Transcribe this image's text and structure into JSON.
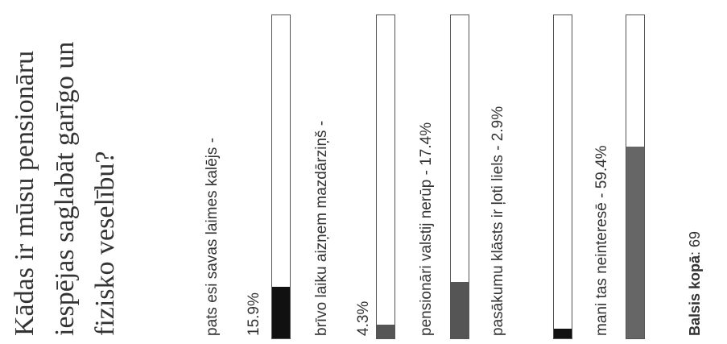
{
  "poll": {
    "question": "Kādas ir mūsu pensionāru iespējas saglabāt garīgo un fizisko veselību?",
    "options": [
      {
        "label": "pats esi savas laimes kalējs - 15.9%",
        "percent": 15.9,
        "color": "#111111"
      },
      {
        "label": "brīvo laiku aizņem mazdārziņš - 4.3%",
        "percent": 4.3,
        "color": "#555555"
      },
      {
        "label": "pensionāri valstij nerūp - 17.4%",
        "percent": 17.4,
        "color": "#555555"
      },
      {
        "label": "pasākumu klāsts ir ļoti liels - 2.9%",
        "percent": 2.9,
        "color": "#111111"
      },
      {
        "label": "mani tas neinteresē - 59.4%",
        "percent": 59.4,
        "color": "#666666"
      }
    ],
    "total_label": "Balsis kopā",
    "total_value": ": 69"
  }
}
